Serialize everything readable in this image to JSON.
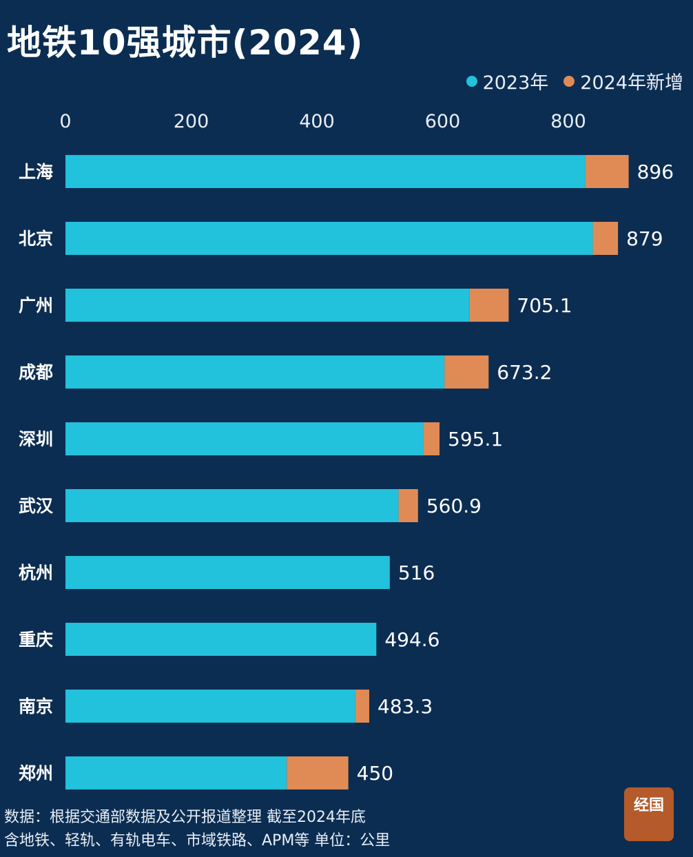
{
  "title": "地铁10强城市(2024)",
  "colors": {
    "background": "#0c2d52",
    "base": "#22c1dc",
    "increment": "#e08b55"
  },
  "footer": {
    "line1": "数据：根据交通部数据及公开报道整理 截至2024年底",
    "line2": "含地铁、轻轨、有轨电车、市域铁路、APM等 单位：公里"
  },
  "logo_text": "经国",
  "chart_data": {
    "type": "bar",
    "orientation": "horizontal",
    "stacked": true,
    "title": "地铁10强城市(2024)",
    "xlim": [
      0,
      900
    ],
    "xticks": [
      "0",
      "200",
      "400",
      "600",
      "800"
    ],
    "grid": false,
    "legend_position": "top-right",
    "categories": [
      "上海",
      "北京",
      "广州",
      "成都",
      "深圳",
      "武汉",
      "杭州",
      "重庆",
      "南京",
      "郑州"
    ],
    "series": [
      {
        "name": "2023年",
        "values": [
          827,
          839,
          643,
          603,
          569,
          530,
          516,
          494.6,
          461,
          352
        ]
      },
      {
        "name": "2024年新增",
        "values": [
          69,
          40,
          62.1,
          70.2,
          26.1,
          30.9,
          0,
          0,
          22.3,
          98
        ]
      }
    ],
    "totals": [
      "896",
      "879",
      "705.1",
      "673.2",
      "595.1",
      "560.9",
      "516",
      "494.6",
      "483.3",
      "450"
    ]
  }
}
